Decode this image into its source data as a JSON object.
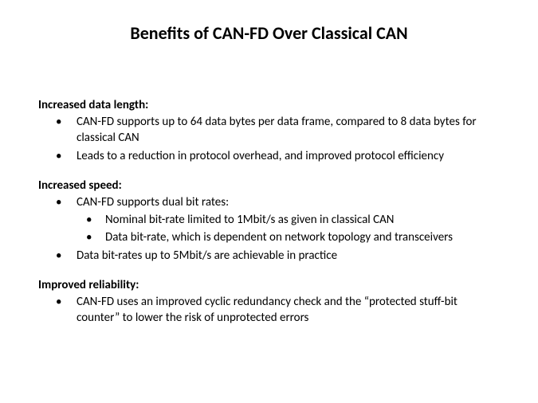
{
  "title": "Benefits of CAN-FD Over Classical CAN",
  "sections": [
    {
      "heading": "Increased data length:",
      "bullets": [
        {
          "level": 1,
          "text": "CAN-FD supports up to 64 data bytes per data frame, compared to 8 data bytes for classical CAN"
        },
        {
          "level": 1,
          "text": "Leads to a reduction in protocol overhead, and improved protocol efficiency"
        }
      ]
    },
    {
      "heading": "Increased speed:",
      "bullets": [
        {
          "level": 1,
          "text": "CAN-FD supports dual bit rates:"
        },
        {
          "level": 2,
          "text": "Nominal bit-rate limited to 1Mbit/s as given in classical CAN"
        },
        {
          "level": 2,
          "text": "Data bit-rate, which is dependent on network topology and transceivers"
        },
        {
          "level": 1,
          "text": "Data bit-rates up to 5Mbit/s are achievable in practice"
        }
      ]
    },
    {
      "heading": "Improved reliability:",
      "bullets": [
        {
          "level": 1,
          "text": "CAN-FD uses an improved cyclic redundancy check and the “protected stuff-bit counter” to lower the risk of unprotected errors"
        }
      ]
    }
  ],
  "styling": {
    "background_color": "#ffffff",
    "text_color": "#000000",
    "title_fontsize": 22,
    "body_fontsize": 15,
    "font_family": "Calibri, Arial, sans-serif"
  }
}
